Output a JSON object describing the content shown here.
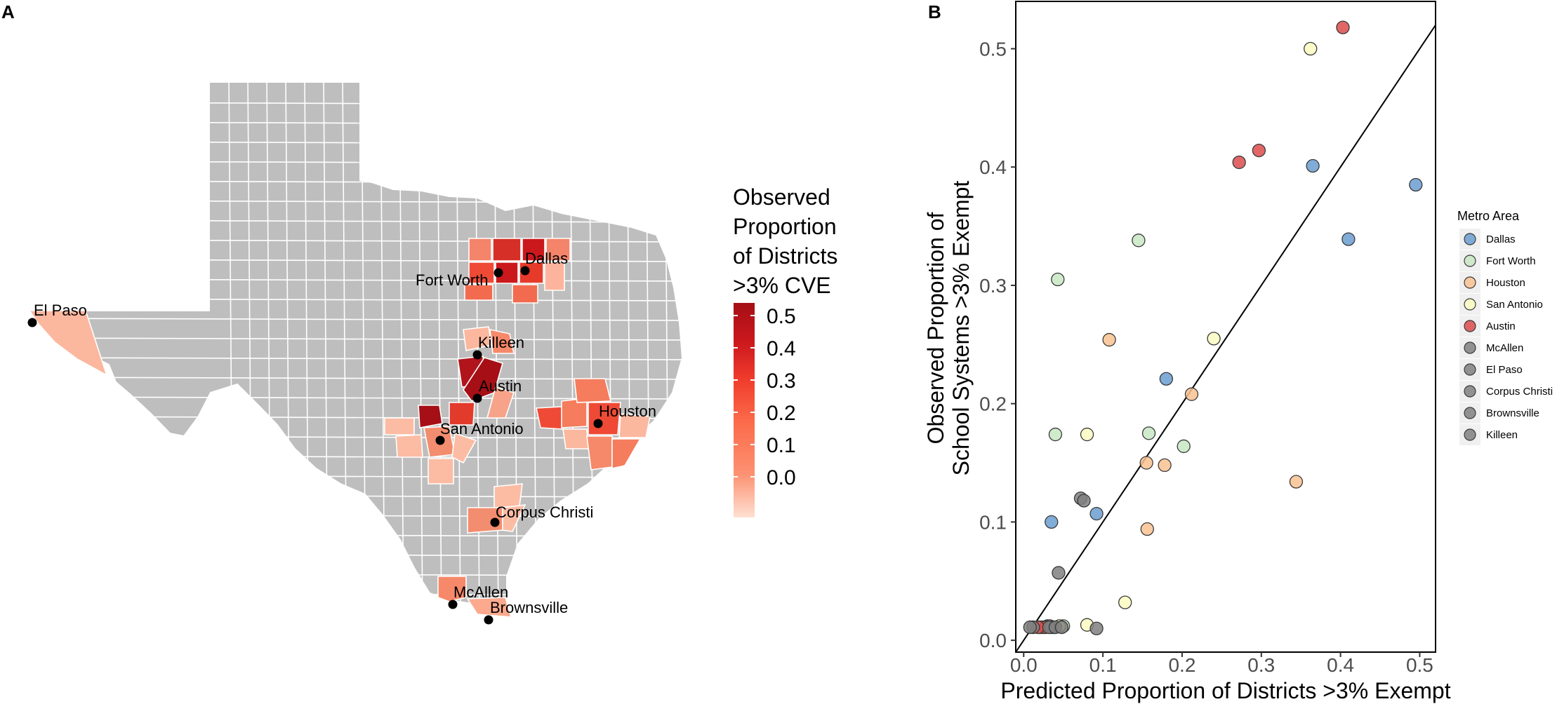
{
  "panel_a": {
    "letter": "A",
    "legend": {
      "title_lines": [
        "Observed",
        "Proportion",
        "of Districts",
        ">3% CVE"
      ],
      "ticks": [
        "0.5",
        "0.4",
        "0.3",
        "0.2",
        "0.1",
        "0.0"
      ],
      "colors": [
        "#fee0d2",
        "#fc9272",
        "#fb6a4a",
        "#ef3b2c",
        "#cb181d",
        "#a50f15"
      ]
    },
    "cities": [
      {
        "name": "El Paso"
      },
      {
        "name": "Fort Worth"
      },
      {
        "name": "Dallas"
      },
      {
        "name": "Killeen"
      },
      {
        "name": "Austin"
      },
      {
        "name": "San Antonio"
      },
      {
        "name": "Houston"
      },
      {
        "name": "Corpus Christi"
      },
      {
        "name": "McAllen"
      },
      {
        "name": "Brownsville"
      }
    ],
    "colors": {
      "county_gray": "#bebebe",
      "border": "#ffffff",
      "dot": "#000000"
    }
  },
  "chart_data": {
    "type": "scatter",
    "panel_letter": "B",
    "xlabel": "Predicted Proportion of Districts >3% Exempt",
    "ylabel_lines": [
      "Observed Proportion of",
      "School Systems >3% Exempt"
    ],
    "xlim": [
      -0.01,
      0.52
    ],
    "ylim": [
      -0.01,
      0.54
    ],
    "xticks": [
      "0.0",
      "0.1",
      "0.2",
      "0.3",
      "0.4",
      "0.5"
    ],
    "yticks": [
      "0.0",
      "0.1",
      "0.2",
      "0.3",
      "0.4",
      "0.5"
    ],
    "reference_line": {
      "slope": 1,
      "intercept": 0
    },
    "legend": {
      "title": "Metro Area",
      "position": "right"
    },
    "series": [
      {
        "name": "Dallas",
        "color": "#6a9ed0",
        "points": [
          [
            0.035,
            0.1
          ],
          [
            0.092,
            0.107
          ],
          [
            0.18,
            0.221
          ],
          [
            0.365,
            0.401
          ],
          [
            0.41,
            0.339
          ],
          [
            0.495,
            0.385
          ],
          [
            0.02,
            0.011
          ],
          [
            0.03,
            0.012
          ]
        ]
      },
      {
        "name": "Fort Worth",
        "color": "#c7e8c3",
        "points": [
          [
            0.04,
            0.174
          ],
          [
            0.043,
            0.305
          ],
          [
            0.145,
            0.338
          ],
          [
            0.158,
            0.175
          ],
          [
            0.202,
            0.164
          ],
          [
            0.05,
            0.012
          ],
          [
            0.025,
            0.011
          ]
        ]
      },
      {
        "name": "Houston",
        "color": "#f9c290",
        "points": [
          [
            0.108,
            0.254
          ],
          [
            0.155,
            0.15
          ],
          [
            0.156,
            0.094
          ],
          [
            0.178,
            0.148
          ],
          [
            0.212,
            0.208
          ],
          [
            0.344,
            0.134
          ],
          [
            0.033,
            0.012
          ],
          [
            0.022,
            0.011
          ],
          [
            0.038,
            0.011
          ]
        ]
      },
      {
        "name": "San Antonio",
        "color": "#fcfcc2",
        "points": [
          [
            0.08,
            0.174
          ],
          [
            0.128,
            0.032
          ],
          [
            0.24,
            0.255
          ],
          [
            0.362,
            0.5
          ],
          [
            0.08,
            0.013
          ],
          [
            0.045,
            0.012
          ]
        ]
      },
      {
        "name": "Austin",
        "color": "#dc4c4c",
        "points": [
          [
            0.272,
            0.404
          ],
          [
            0.297,
            0.414
          ],
          [
            0.403,
            0.518
          ],
          [
            0.028,
            0.011
          ],
          [
            0.018,
            0.011
          ]
        ]
      },
      {
        "name": "McAllen",
        "color": "#808080",
        "points": [
          [
            0.072,
            0.12
          ],
          [
            0.035,
            0.011
          ]
        ]
      },
      {
        "name": "El Paso",
        "color": "#808080",
        "points": [
          [
            0.076,
            0.118
          ],
          [
            0.012,
            0.011
          ]
        ]
      },
      {
        "name": "Corpus Christi",
        "color": "#808080",
        "points": [
          [
            0.044,
            0.057
          ],
          [
            0.032,
            0.011
          ]
        ]
      },
      {
        "name": "Brownsville",
        "color": "#808080",
        "points": [
          [
            0.092,
            0.01
          ],
          [
            0.008,
            0.011
          ]
        ]
      },
      {
        "name": "Killeen",
        "color": "#808080",
        "points": [
          [
            0.04,
            0.011
          ],
          [
            0.048,
            0.011
          ]
        ]
      }
    ]
  }
}
